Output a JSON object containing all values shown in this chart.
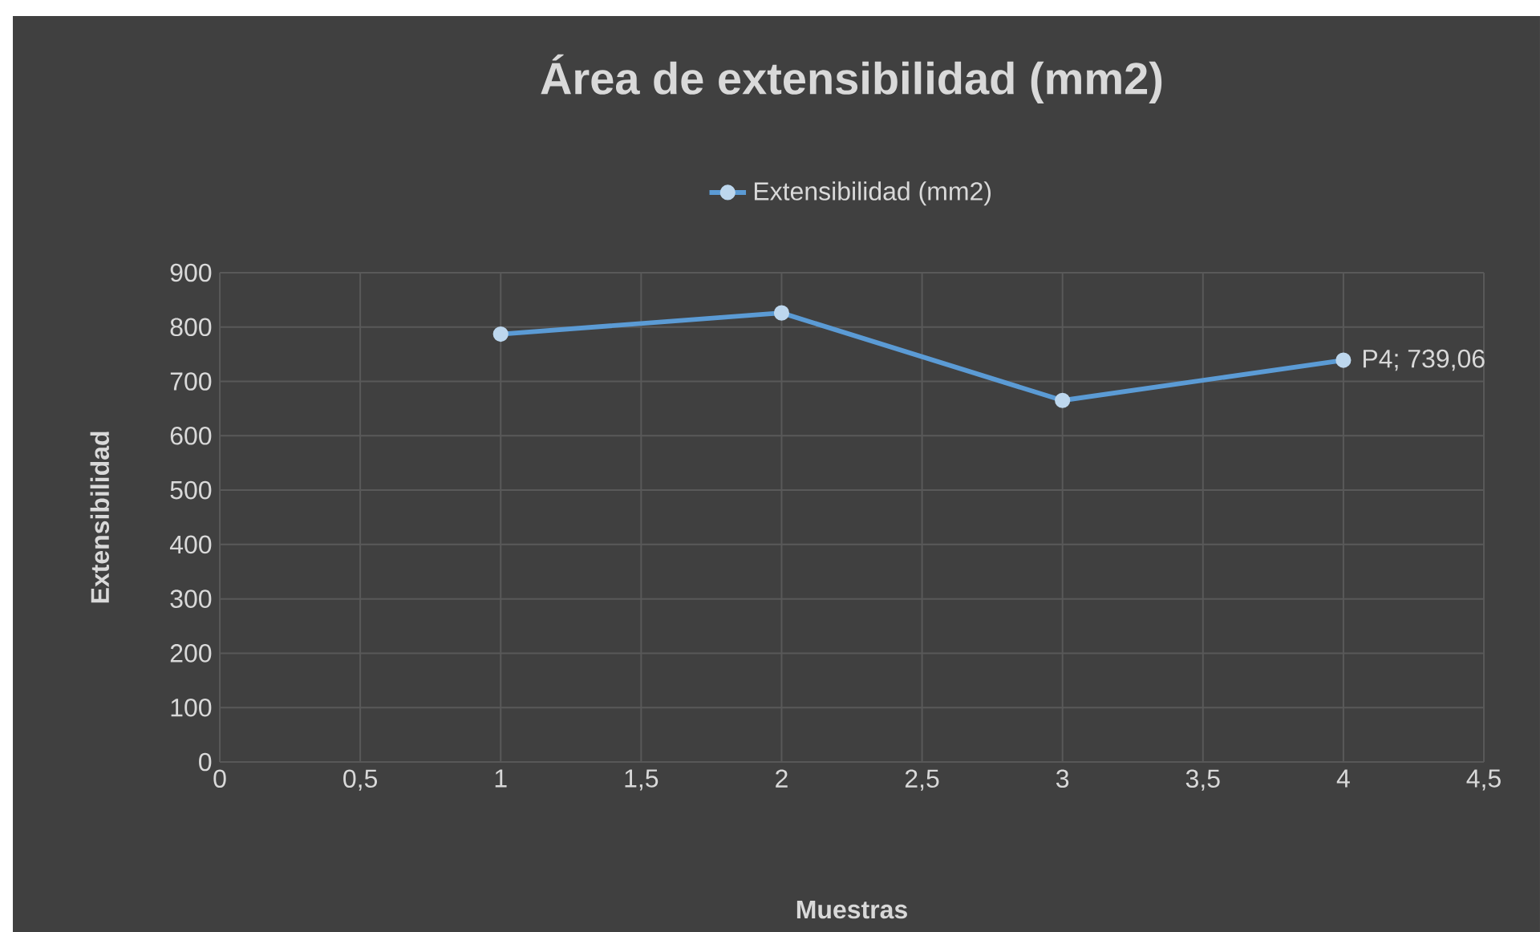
{
  "chart_data": {
    "type": "line",
    "title": "Área de extensibilidad (mm2)",
    "xlabel": "Muestras",
    "ylabel": "Extensibilidad",
    "x": [
      1,
      2,
      3,
      4
    ],
    "series": [
      {
        "name": "Extensibilidad (mm2)",
        "color": "#5b9bd5",
        "values": [
          787,
          826,
          665,
          739.06
        ],
        "value_labels": [
          null,
          null,
          null,
          "P4; 739,06"
        ]
      }
    ],
    "xlim": [
      0,
      4.5
    ],
    "xticks": [
      0,
      {
        "value": 0.5,
        "label": "0,5"
      },
      1,
      {
        "value": 1.5,
        "label": "1,5"
      },
      2,
      {
        "value": 2.5,
        "label": "2,5"
      },
      3,
      {
        "value": 3.5,
        "label": "3,5"
      },
      4,
      {
        "value": 4.5,
        "label": "4,5"
      }
    ],
    "ylim": [
      0,
      900
    ],
    "yticks": [
      0,
      100,
      200,
      300,
      400,
      500,
      600,
      700,
      800,
      900
    ],
    "grid": true,
    "legend": "top",
    "marker": "circle",
    "line_style": "solid"
  }
}
